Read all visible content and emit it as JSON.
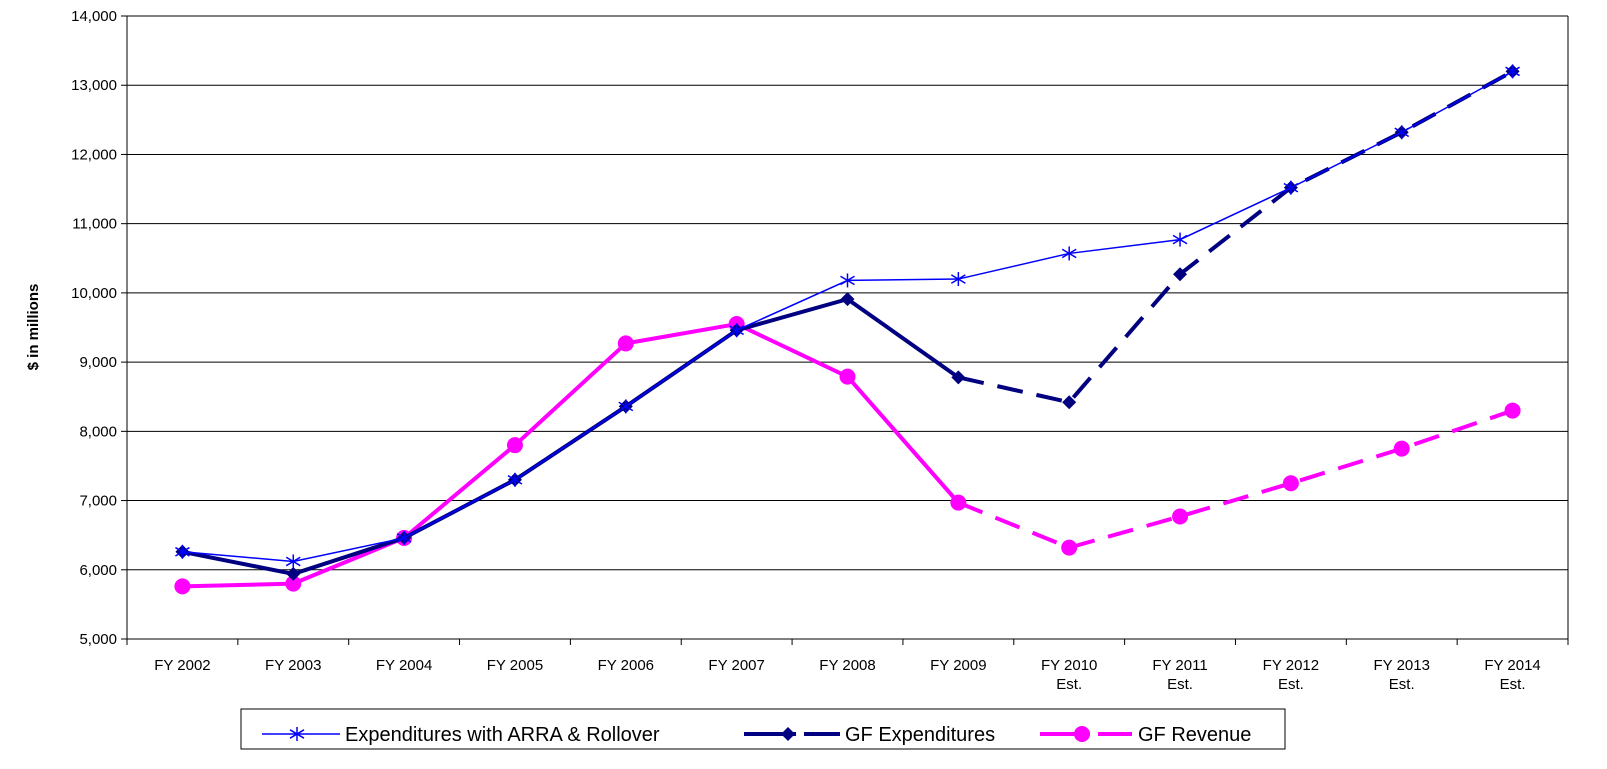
{
  "chart_data": {
    "type": "line",
    "ylabel": "$ in millions",
    "xlabel": "",
    "ylim": [
      5000,
      14000
    ],
    "ytick_step": 1000,
    "grid": "horizontal",
    "legend_position": "bottom",
    "categories": [
      [
        "FY 2002"
      ],
      [
        "FY 2003"
      ],
      [
        "FY 2004"
      ],
      [
        "FY 2005"
      ],
      [
        "FY 2006"
      ],
      [
        "FY 2007"
      ],
      [
        "FY 2008"
      ],
      [
        "FY 2009"
      ],
      [
        "FY 2010",
        "Est."
      ],
      [
        "FY 2011",
        "Est."
      ],
      [
        "FY 2012",
        "Est."
      ],
      [
        "FY 2013",
        "Est."
      ],
      [
        "FY 2014",
        "Est."
      ]
    ],
    "estimate_start_index": 7,
    "series": [
      {
        "name": "Expenditures with ARRA & Rollover",
        "color": "#0000ff",
        "marker": "asterisk",
        "values": [
          6260,
          6120,
          6460,
          7300,
          8360,
          9460,
          10180,
          10200,
          10570,
          10770,
          11520,
          12320,
          13200
        ]
      },
      {
        "name": "GF Expenditures",
        "color": "#000080",
        "marker": "diamond",
        "values": [
          6260,
          5940,
          6460,
          7300,
          8360,
          9460,
          9910,
          8780,
          8420,
          10270,
          11520,
          12320,
          13200
        ]
      },
      {
        "name": "GF Revenue",
        "color": "#ff00ff",
        "marker": "circle",
        "values": [
          5760,
          5800,
          6460,
          7800,
          9270,
          9550,
          8790,
          6970,
          6320,
          6770,
          7250,
          7750,
          8300
        ]
      }
    ]
  }
}
